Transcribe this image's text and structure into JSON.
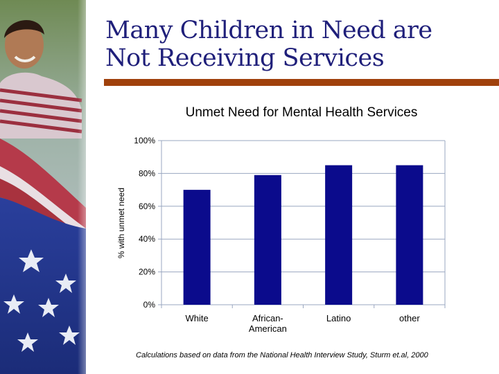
{
  "slide": {
    "title_line1": "Many Children in Need are",
    "title_line2": "Not Receiving Services",
    "footnote": "Calculations based on data from the National Health Interview Study, Sturm et.al, 2000"
  },
  "colors": {
    "title": "#1f1f7a",
    "rule": "#a0410c",
    "bar": "#0b0b8c",
    "grid": "#9aa7c0"
  },
  "chart_data": {
    "type": "bar",
    "title": "Unmet Need for Mental Health Services",
    "xlabel": "",
    "ylabel": "% with unmet need",
    "categories": [
      "White",
      "African-American",
      "Latino",
      "other"
    ],
    "category_lines": [
      [
        "White"
      ],
      [
        "African-",
        "American"
      ],
      [
        "Latino"
      ],
      [
        "other"
      ]
    ],
    "values": [
      70,
      79,
      85,
      85
    ],
    "ylim": [
      0,
      100
    ],
    "yticks": [
      0,
      20,
      40,
      60,
      80,
      100
    ],
    "ytick_labels": [
      "0%",
      "20%",
      "40%",
      "60%",
      "80%",
      "100%"
    ],
    "grid": true,
    "legend": "none"
  }
}
